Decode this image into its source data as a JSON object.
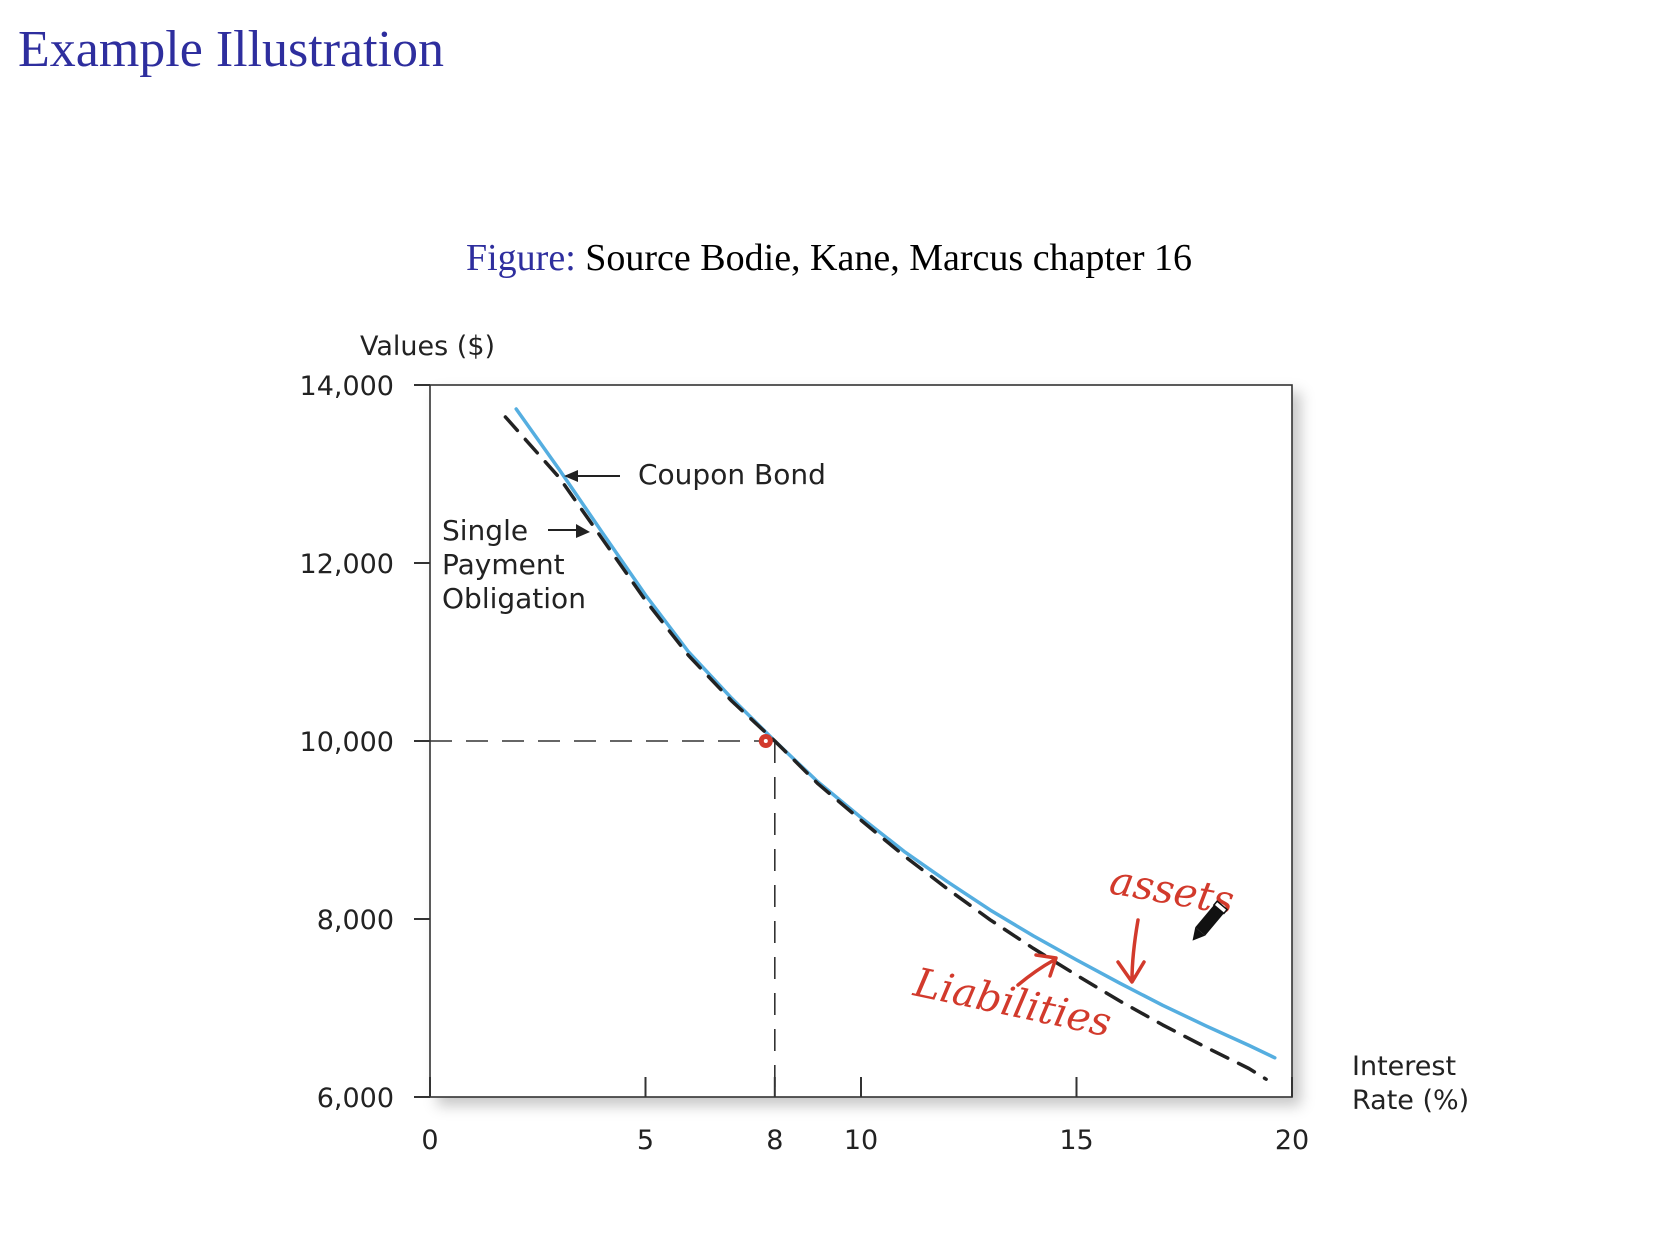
{
  "slide": {
    "title": "Example Illustration",
    "caption_label": "Figure:",
    "caption_text": "Source Bodie, Kane, Marcus chapter 16"
  },
  "chart_data": {
    "type": "line",
    "title": "",
    "ylabel": "Values ($)",
    "xlabel_lines": [
      "Interest",
      "Rate (%)"
    ],
    "xlim": [
      0,
      20
    ],
    "ylim": [
      6000,
      14000
    ],
    "xticks": [
      0,
      5,
      8,
      10,
      15,
      20
    ],
    "xtick_labels": [
      "0",
      "5",
      "8",
      "10",
      "15",
      "20"
    ],
    "yticks": [
      6000,
      8000,
      10000,
      12000,
      14000
    ],
    "ytick_labels": [
      "6,000",
      "8,000",
      "10,000",
      "12,000",
      "14,000"
    ],
    "grid": false,
    "series": [
      {
        "name": "Coupon Bond",
        "style": "solid",
        "color": "#55aee0",
        "x": [
          2,
          3,
          4,
          5,
          6,
          7,
          8,
          9,
          10,
          11,
          12,
          13,
          14,
          15,
          16,
          17,
          18,
          19,
          19.6
        ],
        "y": [
          13730,
          13050,
          12340,
          11640,
          11000,
          10480,
          10000,
          9540,
          9140,
          8760,
          8420,
          8100,
          7810,
          7540,
          7280,
          7030,
          6800,
          6580,
          6440
        ]
      },
      {
        "name": "Single Payment Obligation",
        "style": "dashed",
        "color": "#222222",
        "x": [
          1.75,
          3,
          4,
          5,
          6,
          7,
          8,
          9,
          10,
          11,
          12,
          13,
          14,
          15,
          16,
          17,
          18,
          19,
          19.4
        ],
        "y": [
          13640,
          12960,
          12270,
          11580,
          10960,
          10450,
          10000,
          9520,
          9110,
          8710,
          8340,
          7990,
          7670,
          7370,
          7080,
          6810,
          6560,
          6320,
          6200
        ]
      }
    ],
    "reference": {
      "x": 8,
      "y": 10000
    },
    "annotations": [
      {
        "text": "Coupon Bond"
      },
      {
        "lines": [
          "Single",
          "Payment",
          "Obligation"
        ]
      }
    ],
    "handwritten": {
      "assets": "assets",
      "liabilities": "Liabilities",
      "color": "#d23a2c"
    },
    "colors": {
      "coupon_bond": "#55aee0",
      "single_payment": "#222222",
      "ink": "#d23a2c"
    }
  }
}
